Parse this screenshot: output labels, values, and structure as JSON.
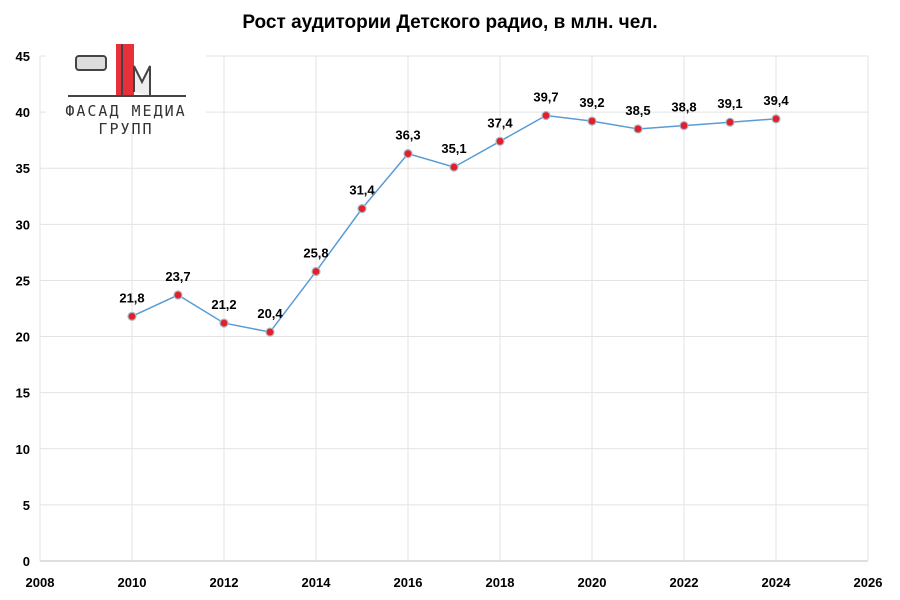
{
  "chart_data": {
    "type": "line",
    "title": "Рост аудитории Детского радио, в млн. чел.",
    "x": [
      2010,
      2011,
      2012,
      2013,
      2014,
      2015,
      2016,
      2017,
      2018,
      2019,
      2020,
      2021,
      2022,
      2023,
      2024
    ],
    "values": [
      21.8,
      23.7,
      21.2,
      20.4,
      25.8,
      31.4,
      36.3,
      35.1,
      37.4,
      39.7,
      39.2,
      38.5,
      38.8,
      39.1,
      39.4
    ],
    "data_labels": [
      "21,8",
      "23,7",
      "21,2",
      "20,4",
      "25,8",
      "31,4",
      "36,3",
      "35,1",
      "37,4",
      "39,7",
      "39,2",
      "38,5",
      "38,8",
      "39,1",
      "39,4"
    ],
    "xlim": [
      2008,
      2026
    ],
    "ylim": [
      0,
      45
    ],
    "xticks": [
      "2008",
      "2010",
      "2012",
      "2014",
      "2016",
      "2018",
      "2020",
      "2022",
      "2024",
      "2026"
    ],
    "yticks": [
      "0",
      "5",
      "10",
      "15",
      "20",
      "25",
      "30",
      "35",
      "40",
      "45"
    ],
    "grid": true,
    "line_color": "#5b9bd5",
    "marker_color": "#e0202a"
  },
  "logo": {
    "text": "ФАСАД МЕДИА ГРУПП",
    "accent": "#e8303a"
  }
}
